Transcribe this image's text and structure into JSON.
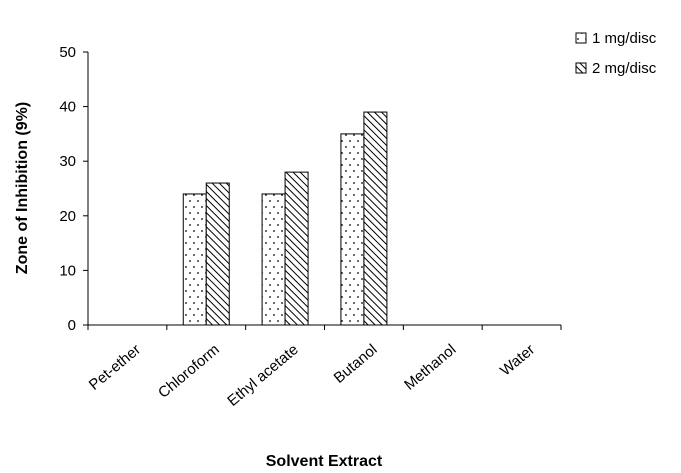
{
  "chart_data": {
    "type": "bar",
    "title": "",
    "xlabel": "Solvent Extract",
    "ylabel": "Zone of Inhibition  (9%)",
    "ylim": [
      0,
      50
    ],
    "yticks": [
      "0",
      "10",
      "20",
      "30",
      "40",
      "50"
    ],
    "categories": [
      "Pet-ether",
      "Chloroform",
      "Ethyl acetate",
      "Butanol",
      "Methanol",
      "Water"
    ],
    "series": [
      {
        "name": "1 mg/disc",
        "values": [
          0,
          24,
          24,
          35,
          0,
          0
        ],
        "pattern": "dots"
      },
      {
        "name": "2 mg/disc",
        "values": [
          0,
          26,
          28,
          39,
          0,
          0
        ],
        "pattern": "diagonal"
      }
    ],
    "grid": false,
    "legend": "top-right",
    "colors": {
      "bar_fill": "#ffffff",
      "bar_stroke": "#000000",
      "axis": "#000000"
    }
  }
}
